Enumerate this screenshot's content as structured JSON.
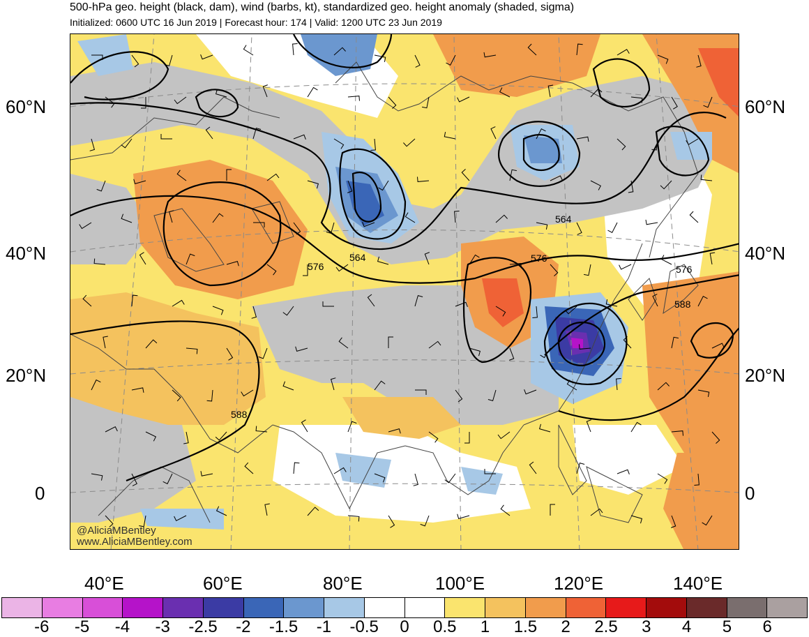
{
  "header": {
    "title": "500-hPa geo. height (black, dam), wind (barbs, kt), standardized geo. height anomaly (shaded, sigma)",
    "subtitle": "Initialized: 0600 UTC 16 Jun 2019 | Forecast hour: 174 | Valid: 1200 UTC 23 Jun 2019"
  },
  "axes": {
    "lat_left": [
      "60°N",
      "40°N",
      "20°N",
      "0"
    ],
    "lat_right": [
      "60°N",
      "40°N",
      "20°N",
      "0"
    ],
    "lon": [
      "40°E",
      "60°E",
      "80°E",
      "100°E",
      "120°E",
      "140°E"
    ]
  },
  "contour_labels": [
    "564",
    "564",
    "576",
    "576",
    "576",
    "588",
    "588"
  ],
  "credits": {
    "handle": "@AliciaMBentley",
    "site": "www.AliciaMBentley.com"
  },
  "colorbar": {
    "colors": [
      "#ebb4e6",
      "#e87de2",
      "#d84fd8",
      "#b513c9",
      "#6a2fb0",
      "#3b3ba4",
      "#3a66b7",
      "#6b97cf",
      "#a7c8e6",
      "#ffffff",
      "#ffffff",
      "#fae46e",
      "#f4c25e",
      "#f19c4c",
      "#ef6236",
      "#e71a1a",
      "#a30c0c",
      "#6a2a2a",
      "#7a6e6e",
      "#aaa0a0"
    ],
    "labels": [
      "-6",
      "-5",
      "-4",
      "-3",
      "-2.5",
      "-2",
      "-1.5",
      "-1",
      "-0.5",
      "0",
      "0.5",
      "1",
      "1.5",
      "2",
      "2.5",
      "3",
      "4",
      "5",
      "6"
    ]
  }
}
